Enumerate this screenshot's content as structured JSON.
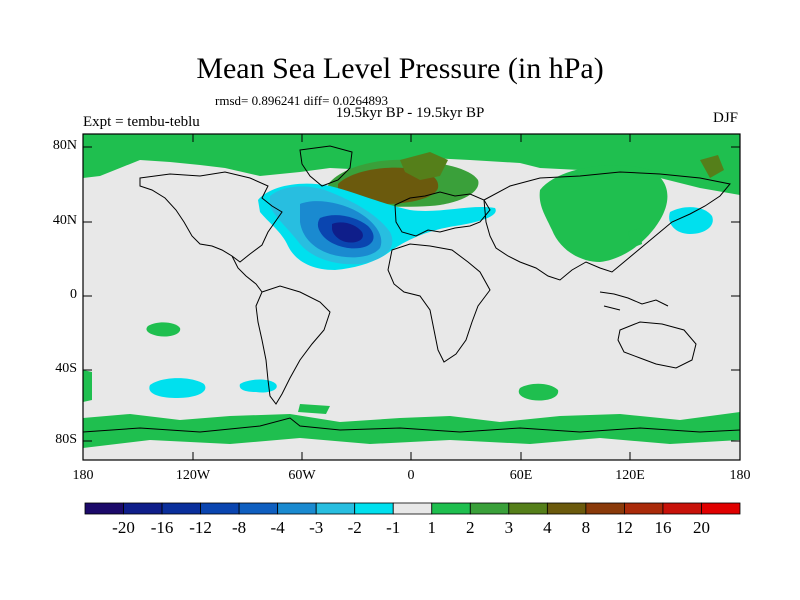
{
  "title": "Mean Sea Level Pressure (in hPa)",
  "stats": "rmsd= 0.896241 diff= 0.0264893",
  "experiment": "Expt = tembu-teblu",
  "subtitle": "19.5kyr BP - 19.5kyr BP",
  "season": "DJF",
  "colors": {
    "land_outline": "#000000",
    "background_field": "#e8e8e8",
    "frame": "#000000"
  },
  "axes": {
    "lat_labels": [
      "80N",
      "40N",
      "0",
      "40S",
      "80S"
    ],
    "lon_labels": [
      "180",
      "120W",
      "60W",
      "0",
      "60E",
      "120E",
      "180"
    ]
  },
  "colorbar": {
    "labels": [
      "-20",
      "-16",
      "-12",
      "-8",
      "-4",
      "-3",
      "-2",
      "-1",
      "1",
      "2",
      "3",
      "4",
      "8",
      "12",
      "16",
      "20"
    ],
    "colors": [
      "#1c0a6a",
      "#0f1e8a",
      "#0a2f9c",
      "#0a45b0",
      "#0f5fc0",
      "#1a8ad0",
      "#28bee0",
      "#00e0ee",
      "#e8e8e8",
      "#1fbf4f",
      "#3aa03a",
      "#557f1a",
      "#6b5a0d",
      "#8a3a0a",
      "#aa2a0a",
      "#c8120a",
      "#e00000"
    ]
  },
  "map_data": {
    "field": "mean sea level pressure difference (hPa)",
    "regions": [
      {
        "name": "north-atlantic-low",
        "sign": "negative",
        "peak": "-12 to -8"
      },
      {
        "name": "north-atlantic-trough",
        "sign": "negative",
        "peak": "-3 to -1"
      },
      {
        "name": "north-pacific-negative",
        "sign": "negative",
        "peak": "-2 to -1"
      },
      {
        "name": "greenland-scandinavia-high",
        "sign": "positive",
        "peak": "4 to 8"
      },
      {
        "name": "arctic-high",
        "sign": "positive",
        "peak": "1 to 3"
      },
      {
        "name": "siberian-high",
        "sign": "positive",
        "peak": "1 to 3"
      },
      {
        "name": "southern-ocean-ring",
        "sign": "positive",
        "peak": "1 to 2"
      },
      {
        "name": "south-pacific-negative",
        "sign": "negative",
        "peak": "-2 to -1"
      }
    ]
  }
}
